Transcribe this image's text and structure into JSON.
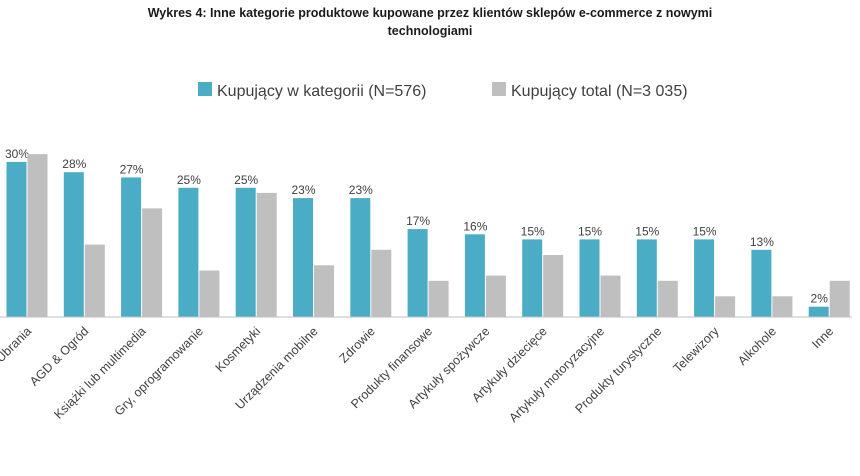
{
  "chart_data": {
    "type": "bar",
    "title": "Wykres 4: Inne kategorie produktowe kupowane przez klientów sklepów e-commerce z nowymi technologiami",
    "title_lines": [
      "Wykres 4: Inne kategorie produktowe kupowane przez klientów sklepów e-commerce z nowymi",
      "technologiami"
    ],
    "xlabel": "",
    "ylabel": "",
    "categories": [
      "Ubrania",
      "AGD & Ogród",
      "Książki lub multimedia",
      "Gry, oprogramowanie",
      "Kosmetyki",
      "Urządzenia mobilne",
      "Zdrowie",
      "Produkty finansowe",
      "Artykuły spożywcze",
      "Artykuły dziecięce",
      "Artykuły motoryzacyjne",
      "Produkty turystyczne",
      "Telewizory",
      "Alkohole",
      "Inne"
    ],
    "series": [
      {
        "name": "Kupujący w kategorii (N=576)",
        "color": "#4bacc6",
        "values": [
          30,
          28,
          27,
          25,
          25,
          23,
          23,
          17,
          16,
          15,
          15,
          15,
          15,
          13,
          2
        ],
        "labels": [
          "30%",
          "28%",
          "27%",
          "25%",
          "25%",
          "23%",
          "23%",
          "17%",
          "16%",
          "15%",
          "15%",
          "15%",
          "15%",
          "13%",
          "2%"
        ]
      },
      {
        "name": "Kupujący total (N=3 035)",
        "color": "#bfbfbf",
        "values": [
          31.5,
          14,
          21,
          9,
          24,
          10,
          13,
          7,
          8,
          12,
          8,
          7,
          4,
          4,
          7
        ]
      }
    ],
    "ylim": [
      0,
      32
    ],
    "grid": false,
    "legend_position": "top"
  }
}
